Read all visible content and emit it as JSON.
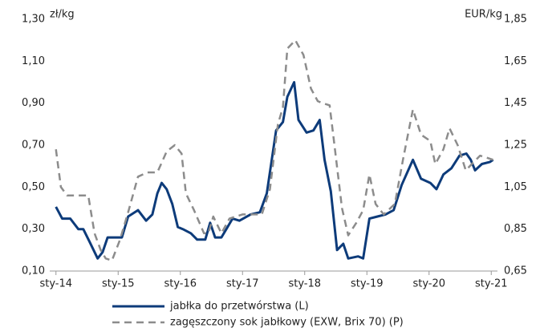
{
  "chart_data": {
    "type": "line",
    "y_label": "zł/kg",
    "y2_label": "EUR/kg",
    "xlim": [
      2013.9,
      2021.1
    ],
    "xticks": [
      {
        "value": 2014,
        "label": "sty-14"
      },
      {
        "value": 2015,
        "label": "sty-15"
      },
      {
        "value": 2016,
        "label": "sty-16"
      },
      {
        "value": 2017,
        "label": "sty-17"
      },
      {
        "value": 2018,
        "label": "sty-18"
      },
      {
        "value": 2019,
        "label": "sty-19"
      },
      {
        "value": 2020,
        "label": "sty-20"
      },
      {
        "value": 2021,
        "label": "sty-21"
      }
    ],
    "ylim": [
      0.1,
      1.3
    ],
    "yticks": [
      {
        "value": 0.1,
        "label": "0,10"
      },
      {
        "value": 0.3,
        "label": "0,30"
      },
      {
        "value": 0.5,
        "label": "0,50"
      },
      {
        "value": 0.7,
        "label": "0,70"
      },
      {
        "value": 0.9,
        "label": "0,90"
      },
      {
        "value": 1.1,
        "label": "1,10"
      },
      {
        "value": 1.3,
        "label": "1,30"
      }
    ],
    "y2lim": [
      0.65,
      1.85
    ],
    "y2ticks": [
      {
        "value": 0.65,
        "label": "0,65"
      },
      {
        "value": 0.85,
        "label": "0,85"
      },
      {
        "value": 1.05,
        "label": "1,05"
      },
      {
        "value": 1.25,
        "label": "1,25"
      },
      {
        "value": 1.45,
        "label": "1,45"
      },
      {
        "value": 1.65,
        "label": "1,65"
      },
      {
        "value": 1.85,
        "label": "1,85"
      }
    ],
    "series": [
      {
        "name": "jabłka do przetwórstwa (L)",
        "color": "#0d3b7a",
        "dash": false,
        "x": [
          2014.0,
          2014.1,
          2014.23,
          2014.36,
          2014.44,
          2014.54,
          2014.67,
          2014.75,
          2014.83,
          2014.9,
          2015.06,
          2015.16,
          2015.32,
          2015.45,
          2015.55,
          2015.63,
          2015.7,
          2015.78,
          2015.87,
          2015.96,
          2016.04,
          2016.17,
          2016.27,
          2016.4,
          2016.48,
          2016.56,
          2016.66,
          2016.74,
          2016.84,
          2016.95,
          2017.13,
          2017.28,
          2017.39,
          2017.54,
          2017.65,
          2017.72,
          2017.83,
          2017.9,
          2018.03,
          2018.14,
          2018.24,
          2018.32,
          2018.42,
          2018.52,
          2018.62,
          2018.7,
          2018.86,
          2018.94,
          2019.04,
          2019.17,
          2019.3,
          2019.43,
          2019.56,
          2019.74,
          2019.87,
          2020.02,
          2020.12,
          2020.23,
          2020.36,
          2020.49,
          2020.6,
          2020.67,
          2020.74,
          2020.85,
          2020.98,
          2021.03
        ],
        "values": [
          0.406,
          0.35,
          0.35,
          0.3,
          0.3,
          0.24,
          0.16,
          0.19,
          0.26,
          0.26,
          0.26,
          0.36,
          0.39,
          0.34,
          0.37,
          0.47,
          0.52,
          0.49,
          0.42,
          0.31,
          0.3,
          0.28,
          0.25,
          0.25,
          0.33,
          0.26,
          0.26,
          0.3,
          0.35,
          0.34,
          0.37,
          0.38,
          0.47,
          0.77,
          0.81,
          0.93,
          1.0,
          0.82,
          0.76,
          0.77,
          0.82,
          0.63,
          0.48,
          0.2,
          0.23,
          0.16,
          0.17,
          0.16,
          0.35,
          0.36,
          0.37,
          0.39,
          0.51,
          0.63,
          0.54,
          0.52,
          0.49,
          0.56,
          0.59,
          0.65,
          0.66,
          0.63,
          0.58,
          0.61,
          0.62,
          0.63
        ]
      },
      {
        "name": "zagęszczony sok jabłkowy (EXW, Brix 70) (P)",
        "color": "#8c8c8c",
        "dash": true,
        "axis": "y2",
        "x": [
          2014.0,
          2014.08,
          2014.18,
          2014.34,
          2014.52,
          2014.62,
          2014.72,
          2014.8,
          2014.9,
          2015.03,
          2015.16,
          2015.32,
          2015.47,
          2015.63,
          2015.78,
          2015.91,
          2016.02,
          2016.09,
          2016.22,
          2016.38,
          2016.45,
          2016.53,
          2016.66,
          2016.79,
          2017.0,
          2017.31,
          2017.44,
          2017.57,
          2017.65,
          2017.72,
          2017.85,
          2017.98,
          2018.1,
          2018.21,
          2018.29,
          2018.4,
          2018.47,
          2018.6,
          2018.7,
          2018.83,
          2018.94,
          2019.04,
          2019.14,
          2019.27,
          2019.45,
          2019.58,
          2019.74,
          2019.87,
          2020.02,
          2020.1,
          2020.23,
          2020.33,
          2020.46,
          2020.59,
          2020.72,
          2020.82,
          2020.93,
          2021.03
        ],
        "values": [
          1.23,
          1.05,
          1.01,
          1.01,
          1.01,
          0.83,
          0.75,
          0.71,
          0.7,
          0.8,
          0.93,
          1.1,
          1.12,
          1.12,
          1.22,
          1.25,
          1.21,
          1.02,
          0.94,
          0.83,
          0.83,
          0.91,
          0.83,
          0.9,
          0.92,
          0.92,
          1.04,
          1.35,
          1.43,
          1.71,
          1.75,
          1.68,
          1.52,
          1.46,
          1.45,
          1.44,
          1.27,
          0.95,
          0.82,
          0.88,
          0.94,
          1.11,
          0.97,
          0.92,
          0.97,
          1.18,
          1.42,
          1.3,
          1.27,
          1.16,
          1.23,
          1.33,
          1.25,
          1.13,
          1.17,
          1.2,
          1.19,
          1.18
        ]
      }
    ]
  }
}
